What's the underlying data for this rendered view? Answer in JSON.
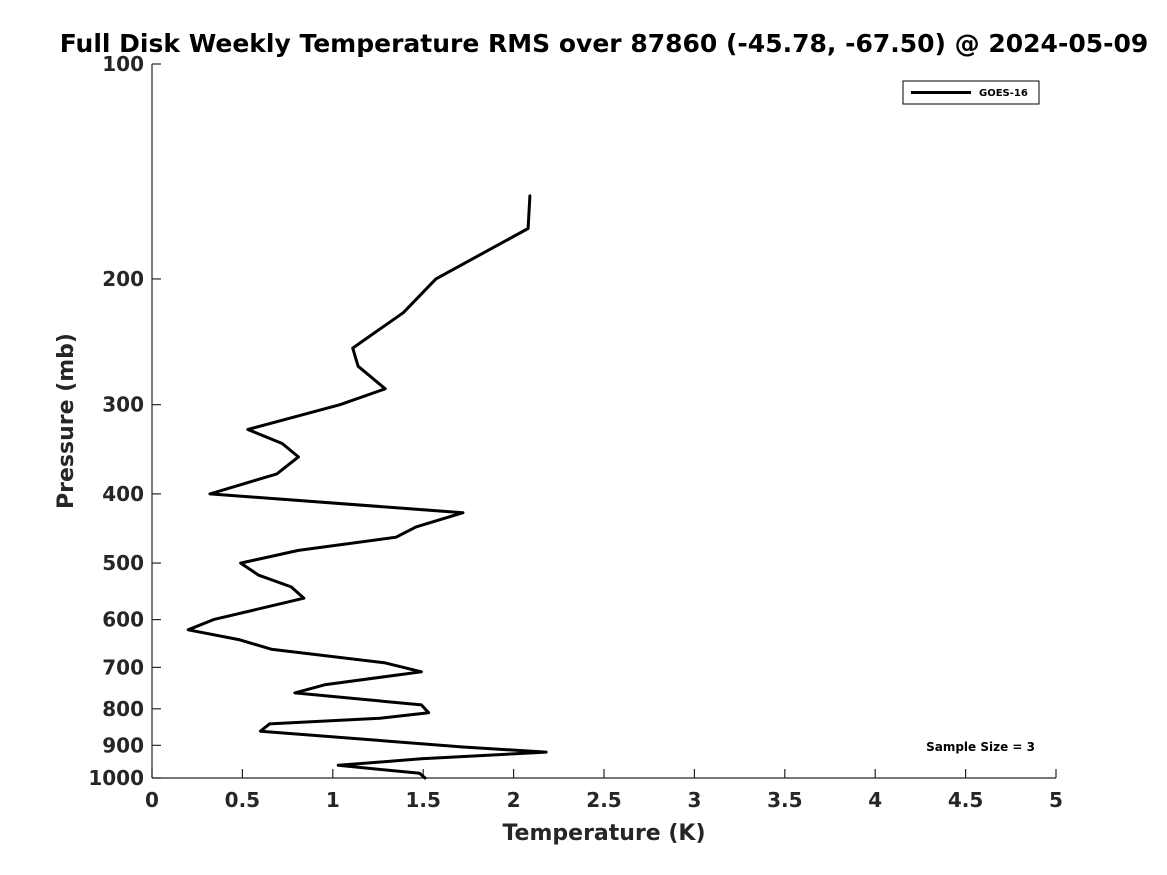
{
  "chart_data": {
    "type": "line",
    "title": "Full Disk Weekly Temperature RMS over 87860 (-45.78, -67.50) @ 2024-05-09",
    "xlabel": "Temperature (K)",
    "ylabel": "Pressure (mb)",
    "xlim": [
      0,
      5
    ],
    "ylim": [
      100,
      1000
    ],
    "yscale": "log",
    "reversed_y": true,
    "xticks": [
      0,
      0.5,
      1,
      1.5,
      2,
      2.5,
      3,
      3.5,
      4,
      4.5,
      5
    ],
    "xtick_labels": [
      "0",
      "0.5",
      "1",
      "1.5",
      "2",
      "2.5",
      "3",
      "3.5",
      "4",
      "4.5",
      "5"
    ],
    "yticks": [
      100,
      200,
      300,
      400,
      500,
      600,
      700,
      800,
      900,
      1000
    ],
    "ytick_labels": [
      "100",
      "200",
      "300",
      "400",
      "500",
      "600",
      "700",
      "800",
      "900",
      "1000"
    ],
    "legend_position": "top-right",
    "annotation": "Sample Size = 3",
    "series": [
      {
        "name": "GOES-16",
        "color": "#000000",
        "points": [
          [
            2.09,
            153
          ],
          [
            2.08,
            170
          ],
          [
            1.57,
            200
          ],
          [
            1.39,
            223
          ],
          [
            1.11,
            250
          ],
          [
            1.14,
            265
          ],
          [
            1.29,
            285
          ],
          [
            1.04,
            300
          ],
          [
            0.53,
            325
          ],
          [
            0.72,
            340
          ],
          [
            0.81,
            355
          ],
          [
            0.69,
            375
          ],
          [
            0.32,
            400
          ],
          [
            1.72,
            425
          ],
          [
            1.46,
            445
          ],
          [
            1.35,
            460
          ],
          [
            0.81,
            480
          ],
          [
            0.49,
            500
          ],
          [
            0.59,
            520
          ],
          [
            0.77,
            540
          ],
          [
            0.84,
            560
          ],
          [
            0.34,
            600
          ],
          [
            0.2,
            620
          ],
          [
            0.48,
            640
          ],
          [
            0.66,
            660
          ],
          [
            1.29,
            690
          ],
          [
            1.49,
            710
          ],
          [
            0.96,
            740
          ],
          [
            0.79,
            760
          ],
          [
            1.49,
            790
          ],
          [
            1.53,
            810
          ],
          [
            1.26,
            825
          ],
          [
            0.65,
            840
          ],
          [
            0.6,
            860
          ],
          [
            1.72,
            905
          ],
          [
            2.18,
            920
          ],
          [
            1.49,
            940
          ],
          [
            1.03,
            960
          ],
          [
            1.48,
            985
          ],
          [
            1.51,
            1000
          ]
        ]
      }
    ]
  }
}
